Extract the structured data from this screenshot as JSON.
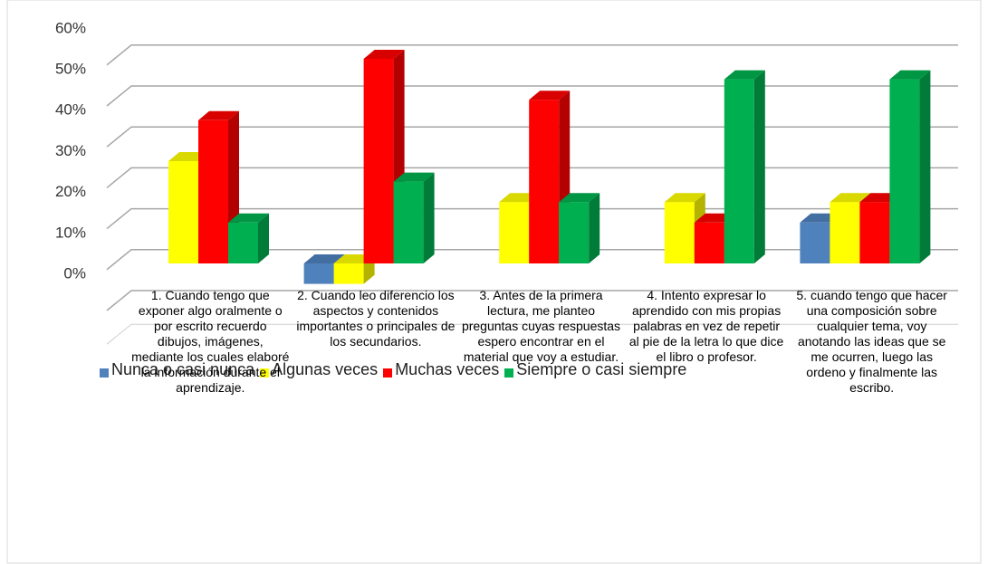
{
  "chart_data": {
    "type": "bar3d",
    "categories": [
      "1. Cuando tengo que exponer algo oralmente o por escrito recuerdo dibujos, imágenes, mediante los cuales elaboré la información durante el aprendizaje.",
      "2. Cuando leo diferencio los aspectos y contenidos importantes o principales de los secundarios.",
      "3. Antes de la primera lectura, me planteo preguntas cuyas respuestas espero encontrar en el material que voy a estudiar.",
      "4. Intento expresar lo aprendido con mis propias palabras en vez de repetir al pie de la letra lo que dice el libro o profesor.",
      "5. cuando tengo que hacer una composición sobre cualquier tema, voy anotando las ideas que se me ocurren, luego las ordeno y finalmente las escribo."
    ],
    "series": [
      {
        "name": "Nunca o casi nunca",
        "color": "#4f81bd",
        "values": [
          0,
          -5,
          0,
          0,
          10
        ]
      },
      {
        "name": "Algunas veces",
        "color": "#ffff00",
        "values": [
          25,
          -5,
          15,
          15,
          15
        ]
      },
      {
        "name": "Muchas veces",
        "color": "#ff0000",
        "values": [
          35,
          50,
          40,
          10,
          15
        ]
      },
      {
        "name": "Siempre o casi siempre",
        "color": "#00b050",
        "values": [
          10,
          20,
          15,
          45,
          45
        ]
      }
    ],
    "ylim": [
      -10,
      60
    ],
    "yticks": [
      {
        "value": 0,
        "label": "0%"
      },
      {
        "value": 10,
        "label": "10%"
      },
      {
        "value": 20,
        "label": "20%"
      },
      {
        "value": 30,
        "label": "30%"
      },
      {
        "value": 40,
        "label": "40%"
      },
      {
        "value": 50,
        "label": "50%"
      },
      {
        "value": 60,
        "label": "60%"
      }
    ],
    "grid": true,
    "legend": "bottom"
  }
}
